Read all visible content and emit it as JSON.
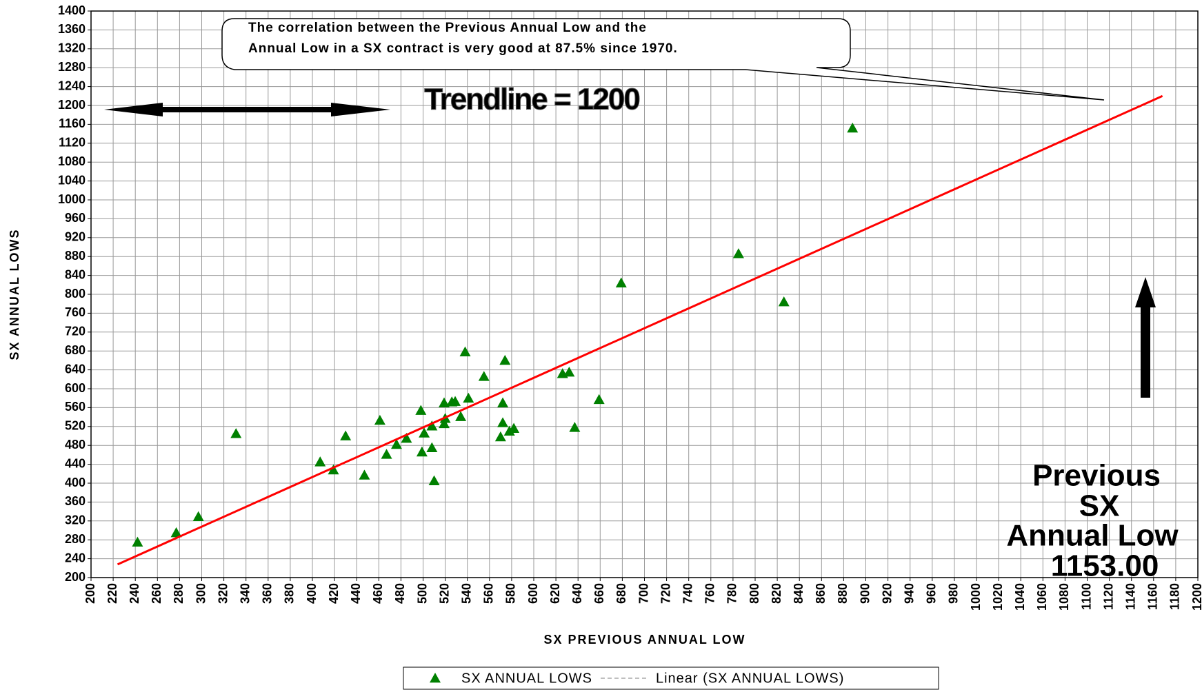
{
  "chart_data": {
    "type": "scatter",
    "x_label": "SX PREVIOUS ANNUAL LOW",
    "y_label": "SX ANNUAL LOWS",
    "xlim": [
      200,
      1200
    ],
    "ylim": [
      200,
      1400
    ],
    "xticks": [
      200,
      220,
      240,
      260,
      280,
      300,
      320,
      340,
      360,
      380,
      400,
      420,
      440,
      460,
      480,
      500,
      520,
      540,
      560,
      580,
      600,
      620,
      640,
      660,
      680,
      700,
      720,
      740,
      760,
      780,
      800,
      820,
      840,
      860,
      880,
      900,
      920,
      940,
      960,
      980,
      1000,
      1020,
      1040,
      1060,
      1080,
      1100,
      1120,
      1140,
      1160,
      1180,
      1200
    ],
    "yticks": [
      200,
      240,
      280,
      320,
      360,
      400,
      440,
      480,
      520,
      560,
      600,
      640,
      680,
      720,
      760,
      800,
      840,
      880,
      920,
      960,
      1000,
      1040,
      1080,
      1120,
      1160,
      1200,
      1240,
      1280,
      1320,
      1360,
      1400
    ],
    "grid": true,
    "series": [
      {
        "name": "SX ANNUAL LOWS",
        "type": "scatter",
        "marker": "triangle",
        "color": "#008000",
        "x": [
          242,
          277,
          297,
          331,
          407,
          419,
          430,
          447,
          461,
          467,
          476,
          485,
          498,
          499,
          501,
          508,
          508,
          510,
          519,
          520,
          519,
          526,
          529,
          534,
          541,
          538,
          555,
          570,
          572,
          572,
          574,
          578,
          582,
          626,
          632,
          637,
          659,
          679,
          785,
          826,
          888
        ],
        "values": [
          275,
          295,
          329,
          505,
          445,
          428,
          500,
          417,
          533,
          461,
          482,
          495,
          554,
          466,
          506,
          475,
          521,
          405,
          526,
          537,
          570,
          572,
          573,
          541,
          580,
          678,
          626,
          498,
          570,
          528,
          660,
          510,
          516,
          632,
          635,
          518,
          577,
          824,
          886,
          784,
          1152
        ]
      },
      {
        "name": "Linear (SX ANNUAL LOWS)",
        "type": "line",
        "color": "#ff0000",
        "x": [
          224,
          1168
        ],
        "values": [
          228,
          1220
        ]
      }
    ],
    "callout": [
      "The correlation between the Previous Annual Low and the",
      "Annual Low in a SX contract is very good at 87.5% since 1970."
    ],
    "trendline_label": "Trendline = 1200",
    "current_label": [
      "Previous",
      "SX",
      "Annual Low",
      "1153.00"
    ]
  }
}
